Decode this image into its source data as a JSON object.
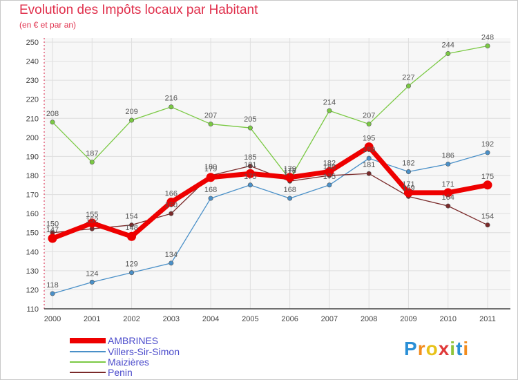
{
  "title": "Evolution des Impôts locaux par Habitant",
  "subtitle": "(en € et par an)",
  "brand": {
    "letters": [
      "P",
      "r",
      "o",
      "x",
      "i",
      "t",
      "i"
    ],
    "colors": [
      "#2a8fd6",
      "#f28c1e",
      "#e8c21a",
      "#e03a3a",
      "#8fc43a",
      "#2a8fd6",
      "#f28c1e"
    ]
  },
  "chart_data": {
    "type": "line",
    "title": "Evolution des Impôts locaux par Habitant",
    "ylabel": "(en € et par an)",
    "xlabel": "",
    "x": [
      "2000",
      "2001",
      "2002",
      "2003",
      "2004",
      "2005",
      "2006",
      "2007",
      "2008",
      "2009",
      "2010",
      "2011"
    ],
    "ylim": [
      110,
      250
    ],
    "yticks": [
      110,
      120,
      130,
      140,
      150,
      160,
      170,
      180,
      190,
      200,
      210,
      220,
      230,
      240,
      250
    ],
    "grid": true,
    "legend": "bottom-left",
    "series": [
      {
        "name": "AMBRINES",
        "color": "#ee0000",
        "values": [
          147,
          155,
          148,
          166,
          179,
          181,
          179,
          182,
          195,
          171,
          171,
          175
        ]
      },
      {
        "name": "Villers-Sir-Simon",
        "color": "#4a90c8",
        "values": [
          118,
          124,
          129,
          134,
          168,
          175,
          168,
          175,
          189,
          182,
          186,
          192
        ]
      },
      {
        "name": "Maizières",
        "color": "#7ac943",
        "values": [
          208,
          187,
          209,
          216,
          207,
          205,
          178,
          214,
          207,
          227,
          244,
          248
        ]
      },
      {
        "name": "Penin",
        "color": "#7a2a2a",
        "values": [
          150,
          152,
          154,
          160,
          180,
          185,
          177,
          180,
          181,
          169,
          164,
          154
        ]
      }
    ]
  }
}
